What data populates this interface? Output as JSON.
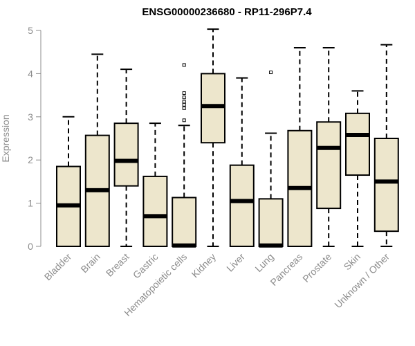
{
  "chart_data": {
    "type": "boxplot",
    "title": "ENSG00000236680 - RP11-296P7.4",
    "xlabel": "",
    "ylabel": "Expression",
    "ylim": [
      0,
      5
    ],
    "yticks": [
      0,
      1,
      2,
      3,
      4,
      5
    ],
    "box_fill": "#ede6cc",
    "categories": [
      "Bladder",
      "Brain",
      "Breast",
      "Gastric",
      "Hematopoietic cells",
      "Kidney",
      "Liver",
      "Lung",
      "Pancreas",
      "Prostate",
      "Skin",
      "Unknown / Other"
    ],
    "boxes": [
      {
        "name": "Bladder",
        "min": 0,
        "q1": 0,
        "median": 0.95,
        "q3": 1.85,
        "max": 3.0,
        "outliers": []
      },
      {
        "name": "Brain",
        "min": 0,
        "q1": 0,
        "median": 1.3,
        "q3": 2.57,
        "max": 4.45,
        "outliers": []
      },
      {
        "name": "Breast",
        "min": 0,
        "q1": 1.4,
        "median": 1.98,
        "q3": 2.85,
        "max": 4.1,
        "outliers": []
      },
      {
        "name": "Gastric",
        "min": 0,
        "q1": 0,
        "median": 0.7,
        "q3": 1.62,
        "max": 2.85,
        "outliers": []
      },
      {
        "name": "Hematopoietic cells",
        "min": 0,
        "q1": 0,
        "median": 0.02,
        "q3": 1.13,
        "max": 2.8,
        "outliers": [
          2.92,
          3.2,
          3.28,
          3.35,
          3.45,
          3.55,
          4.2
        ]
      },
      {
        "name": "Kidney",
        "min": 0,
        "q1": 2.4,
        "median": 3.25,
        "q3": 4.0,
        "max": 5.03,
        "outliers": []
      },
      {
        "name": "Liver",
        "min": 0,
        "q1": 0,
        "median": 1.05,
        "q3": 1.88,
        "max": 3.9,
        "outliers": []
      },
      {
        "name": "Lung",
        "min": 0,
        "q1": 0,
        "median": 0.02,
        "q3": 1.1,
        "max": 2.62,
        "outliers": [
          4.03
        ]
      },
      {
        "name": "Pancreas",
        "min": 0,
        "q1": 0,
        "median": 1.35,
        "q3": 2.68,
        "max": 4.6,
        "outliers": []
      },
      {
        "name": "Prostate",
        "min": 0,
        "q1": 0.88,
        "median": 2.28,
        "q3": 2.88,
        "max": 4.6,
        "outliers": []
      },
      {
        "name": "Skin",
        "min": 0,
        "q1": 1.65,
        "median": 2.58,
        "q3": 3.08,
        "max": 3.6,
        "outliers": []
      },
      {
        "name": "Unknown / Other",
        "min": 0,
        "q1": 0.35,
        "median": 1.5,
        "q3": 2.5,
        "max": 4.67,
        "outliers": []
      }
    ]
  }
}
